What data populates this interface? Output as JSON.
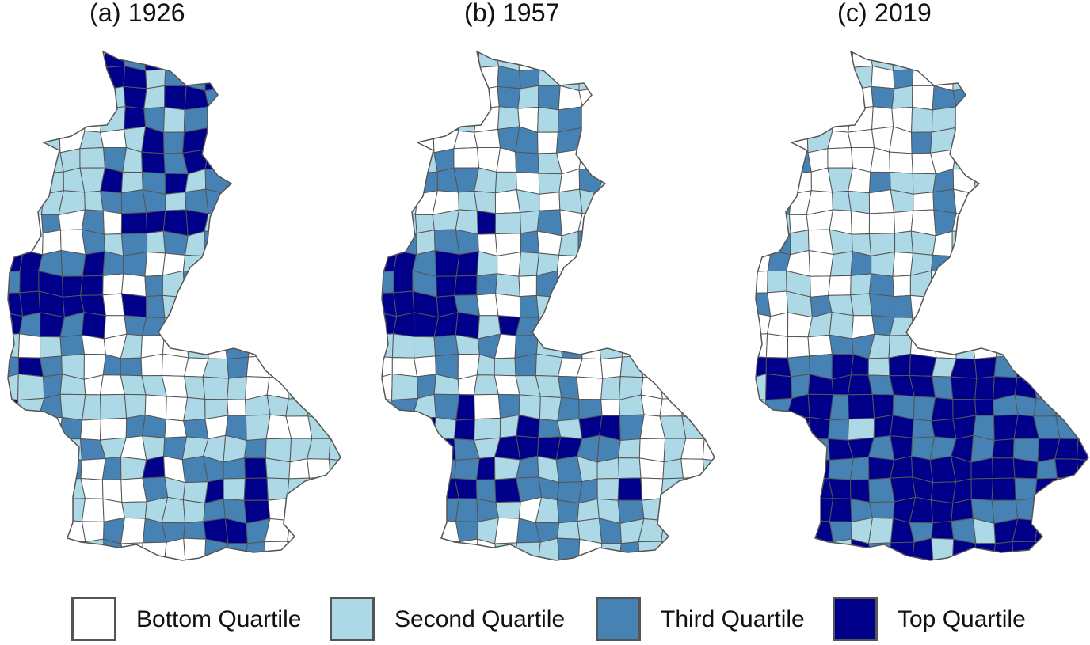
{
  "panels": [
    {
      "title": "(a) 1926"
    },
    {
      "title": "(b) 1957"
    },
    {
      "title": "(c) 2019"
    }
  ],
  "legend": [
    {
      "label": "Bottom Quartile",
      "color": "#ffffff"
    },
    {
      "label": "Second Quartile",
      "color": "#add8e6"
    },
    {
      "label": "Third Quartile",
      "color": "#4682b4"
    },
    {
      "label": "Top Quartile",
      "color": "#00008b"
    }
  ],
  "border_color": "#555555"
}
